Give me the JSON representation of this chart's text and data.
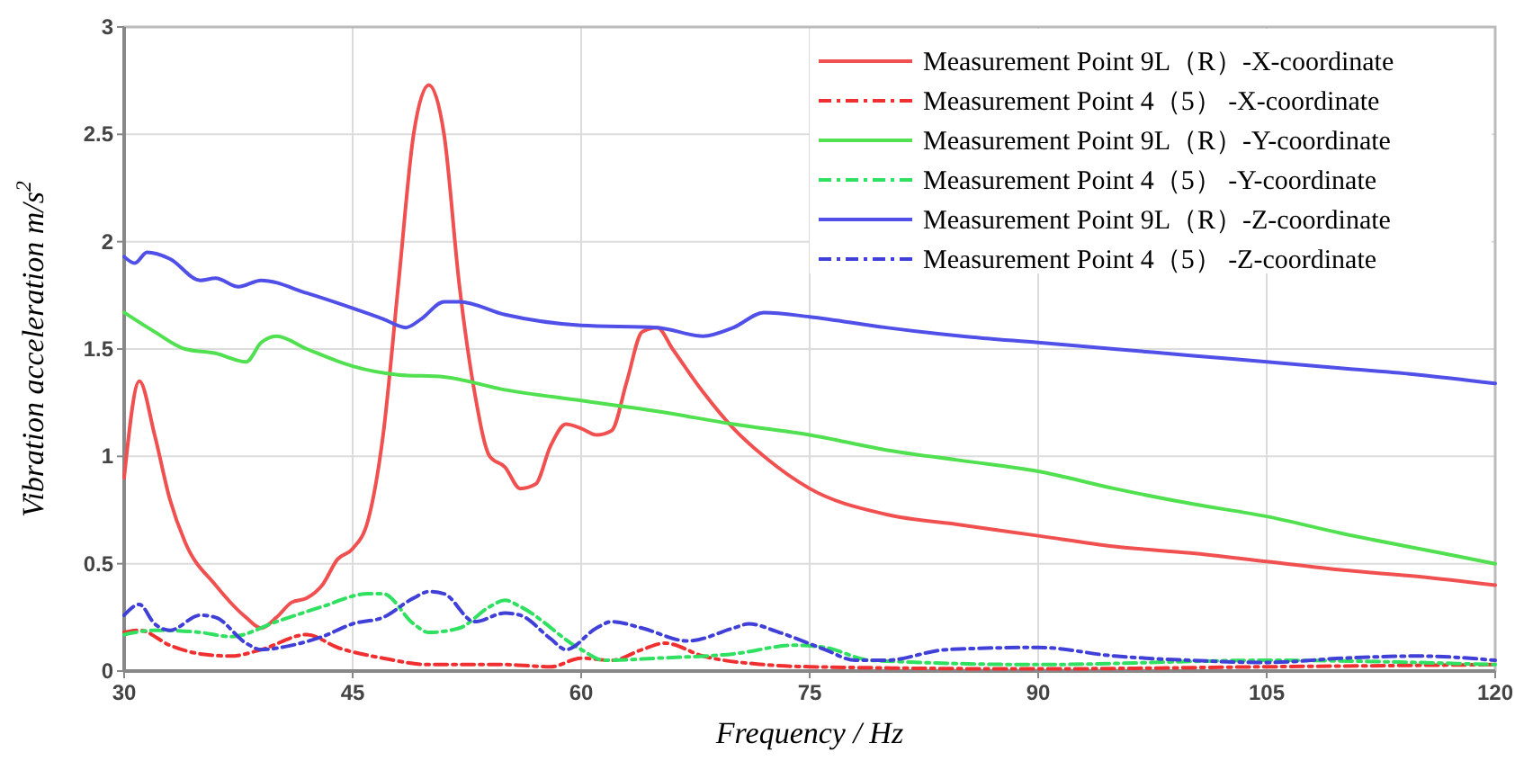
{
  "chart_data": {
    "type": "line",
    "xlabel": "Frequency / Hz",
    "ylabel": "Vibration acceleration m/s$^{2}$",
    "xlim": [
      30,
      120
    ],
    "ylim": [
      0,
      3
    ],
    "xticks": [
      30,
      45,
      60,
      75,
      90,
      105,
      120
    ],
    "yticks": [
      0,
      0.5,
      1,
      1.5,
      2,
      2.5,
      3
    ],
    "grid": true,
    "legend": "top right",
    "marker": "none",
    "series": [
      {
        "name": "Measurement Point 9L（R）-X-coordinate",
        "color": "#f05050",
        "line_style": "solid",
        "x": [
          30,
          31,
          32,
          33,
          34,
          36,
          38,
          39,
          40,
          41,
          42,
          43,
          44,
          45,
          46,
          47,
          48,
          49,
          50,
          51,
          52,
          53,
          54,
          55,
          56,
          57,
          58,
          59,
          60,
          61,
          62,
          63,
          64,
          65,
          66,
          68,
          70,
          72,
          75,
          80,
          85,
          90,
          95,
          100,
          105,
          110,
          115,
          120
        ],
        "values": [
          0.9,
          1.35,
          1.1,
          0.8,
          0.6,
          0.4,
          0.25,
          0.2,
          0.25,
          0.32,
          0.34,
          0.4,
          0.52,
          0.57,
          0.7,
          1.1,
          1.8,
          2.5,
          2.73,
          2.5,
          1.8,
          1.3,
          1.0,
          0.95,
          0.85,
          0.87,
          1.05,
          1.15,
          1.13,
          1.1,
          1.12,
          1.35,
          1.58,
          1.6,
          1.5,
          1.3,
          1.13,
          1.0,
          0.85,
          0.73,
          0.68,
          0.63,
          0.58,
          0.55,
          0.51,
          0.47,
          0.44,
          0.4
        ]
      },
      {
        "name": "Measurement Point  4（5） -X-coordinate",
        "color": "#f03030",
        "line_style": "dashed",
        "x": [
          30,
          31,
          33,
          35,
          37,
          39,
          42,
          44,
          47,
          50,
          55,
          58,
          60,
          62,
          64,
          65.5,
          68,
          72,
          75,
          90,
          105,
          120
        ],
        "values": [
          0.18,
          0.19,
          0.12,
          0.08,
          0.07,
          0.1,
          0.17,
          0.11,
          0.06,
          0.03,
          0.03,
          0.02,
          0.06,
          0.05,
          0.1,
          0.13,
          0.07,
          0.03,
          0.02,
          0.01,
          0.02,
          0.03
        ]
      },
      {
        "name": "Measurement Point 9L（R）-Y-coordinate",
        "color": "#50e050",
        "line_style": "solid",
        "x": [
          30,
          32,
          34,
          36,
          38,
          39,
          40,
          42,
          45,
          48,
          51,
          55,
          60,
          65,
          70,
          75,
          80,
          85,
          90,
          95,
          100,
          105,
          110,
          115,
          120
        ],
        "values": [
          1.67,
          1.58,
          1.5,
          1.48,
          1.44,
          1.53,
          1.56,
          1.5,
          1.42,
          1.38,
          1.37,
          1.31,
          1.26,
          1.21,
          1.15,
          1.1,
          1.03,
          0.98,
          0.93,
          0.85,
          0.78,
          0.72,
          0.64,
          0.57,
          0.5
        ]
      },
      {
        "name": "Measurement Point  4（5） -Y-coordinate",
        "color": "#30e060",
        "line_style": "dashed",
        "x": [
          30,
          32,
          35,
          37,
          40,
          43,
          46,
          47,
          49,
          50,
          52,
          54,
          55,
          56,
          60,
          61.5,
          65,
          70,
          74,
          76,
          79,
          90,
          105,
          120
        ],
        "values": [
          0.17,
          0.19,
          0.18,
          0.16,
          0.23,
          0.3,
          0.36,
          0.36,
          0.22,
          0.18,
          0.2,
          0.3,
          0.33,
          0.3,
          0.1,
          0.05,
          0.06,
          0.08,
          0.12,
          0.11,
          0.05,
          0.03,
          0.05,
          0.03
        ]
      },
      {
        "name": "Measurement Point 9L（R）-Z-coordinate",
        "color": "#5050e8",
        "line_style": "solid",
        "x": [
          30,
          30.7,
          31.5,
          33,
          35,
          36,
          37.5,
          39,
          42,
          45,
          47,
          48.5,
          49.5,
          51,
          52,
          55,
          60,
          65,
          68,
          70,
          72,
          75,
          80,
          85,
          90,
          95,
          100,
          105,
          110,
          115,
          120
        ],
        "values": [
          1.93,
          1.9,
          1.95,
          1.92,
          1.82,
          1.83,
          1.79,
          1.82,
          1.76,
          1.69,
          1.64,
          1.6,
          1.64,
          1.72,
          1.72,
          1.66,
          1.61,
          1.6,
          1.56,
          1.6,
          1.67,
          1.65,
          1.6,
          1.56,
          1.53,
          1.5,
          1.47,
          1.44,
          1.41,
          1.38,
          1.34
        ]
      },
      {
        "name": "Measurement Point  4（5） -Z-coordinate",
        "color": "#4040d8",
        "line_style": "dashed",
        "x": [
          30,
          31,
          32,
          33,
          35,
          36,
          38,
          39,
          41,
          43,
          45,
          47,
          49,
          50,
          51,
          53,
          55,
          56,
          58,
          59,
          61,
          62,
          64,
          67,
          70,
          71,
          73,
          76,
          78,
          80,
          84,
          90,
          95,
          100,
          105,
          110,
          115,
          120
        ],
        "values": [
          0.26,
          0.31,
          0.22,
          0.19,
          0.26,
          0.25,
          0.13,
          0.1,
          0.12,
          0.16,
          0.22,
          0.25,
          0.34,
          0.37,
          0.36,
          0.23,
          0.27,
          0.26,
          0.15,
          0.1,
          0.2,
          0.23,
          0.2,
          0.14,
          0.2,
          0.22,
          0.18,
          0.1,
          0.05,
          0.05,
          0.1,
          0.11,
          0.07,
          0.05,
          0.04,
          0.06,
          0.07,
          0.05
        ]
      }
    ]
  }
}
